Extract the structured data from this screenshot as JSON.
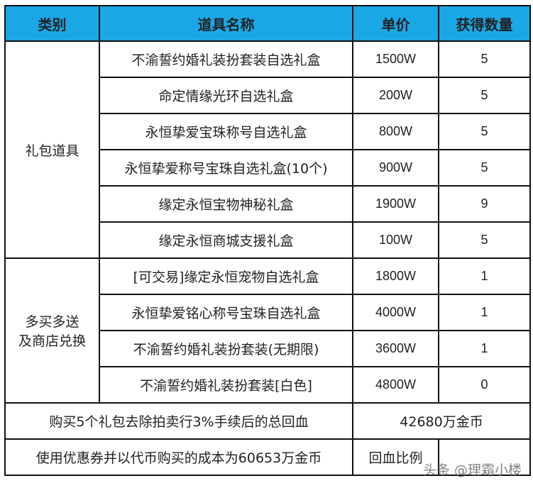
{
  "header": {
    "category": "类别",
    "item_name": "道具名称",
    "price": "单价",
    "quantity": "获得数量"
  },
  "groups": [
    {
      "category": "礼包道具",
      "rows": [
        {
          "name": "不渝誓约婚礼装扮套装自选礼盒",
          "price": "1500W",
          "qty": "5"
        },
        {
          "name": "命定情缘光环自选礼盒",
          "price": "200W",
          "qty": "5"
        },
        {
          "name": "永恒挚爱宝珠称号自选礼盒",
          "price": "800W",
          "qty": "5"
        },
        {
          "name": "永恒挚爱称号宝珠自选礼盒(10个)",
          "price": "900W",
          "qty": "5"
        },
        {
          "name": "缘定永恒宝物神秘礼盒",
          "price": "1900W",
          "qty": "9"
        },
        {
          "name": "缘定永恒商城支援礼盒",
          "price": "100W",
          "qty": "5"
        }
      ]
    },
    {
      "category_line1": "多买多送",
      "category_line2": "及商店兑换",
      "rows": [
        {
          "name": "[可交易]缘定永恒宠物自选礼盒",
          "price": "1800W",
          "qty": "1"
        },
        {
          "name": "永恒挚爱铭心称号宝珠自选礼盒",
          "price": "4000W",
          "qty": "1"
        },
        {
          "name": "不渝誓约婚礼装扮套装(无期限)",
          "price": "3600W",
          "qty": "1"
        },
        {
          "name": "不渝誓约婚礼装扮套装[白色]",
          "price": "4800W",
          "qty": "0"
        }
      ]
    }
  ],
  "summary": {
    "return_label": "购买5个礼包去除拍卖行3%手续后的总回血",
    "return_value": "42680万金币",
    "cost_label": "使用优惠券并以代币购买的成本为60653万金币",
    "ratio_label": "回血比例",
    "ratio_value": ""
  },
  "watermark": "头条 @理霜小楼",
  "colors": {
    "header_bg": "#1aa7e6"
  }
}
